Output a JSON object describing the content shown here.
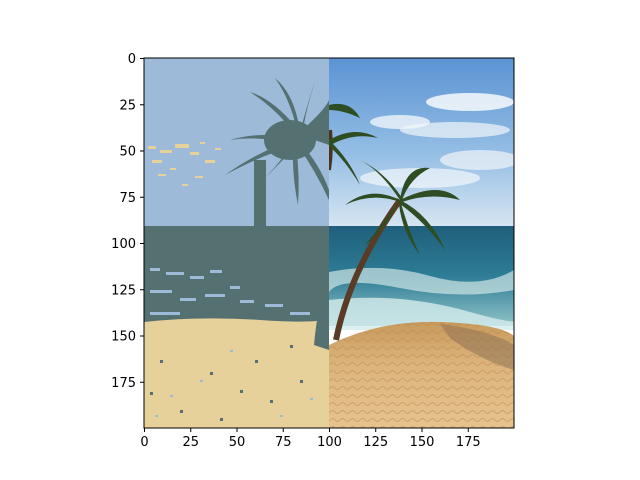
{
  "figure": {
    "description_tag": "image-plot",
    "x_ticks": [
      "0",
      "25",
      "50",
      "75",
      "100",
      "125",
      "150",
      "175"
    ],
    "y_ticks": [
      "0",
      "25",
      "50",
      "75",
      "100",
      "125",
      "150",
      "175"
    ],
    "xlim": [
      0,
      200
    ],
    "ylim": [
      0,
      200
    ],
    "x_tick_values": [
      0,
      25,
      50,
      75,
      100,
      125,
      150,
      175
    ],
    "y_tick_values": [
      0,
      25,
      50,
      75,
      100,
      125,
      150,
      175
    ],
    "image_content": "beach-scene-with-palm-trees",
    "left_half_style": "posterized-4-color",
    "right_half_style": "photographic",
    "colors": {
      "posterized_sky": "#9dbbd9",
      "posterized_sand": "#e7d19a",
      "posterized_dark": "#547070",
      "photo_sky_top": "#5b93d3",
      "photo_sky_bottom": "#c9dff0",
      "photo_sea": "#2c6f8a",
      "photo_sand": "#d9b37a",
      "palm_green": "#2e4a22"
    }
  }
}
